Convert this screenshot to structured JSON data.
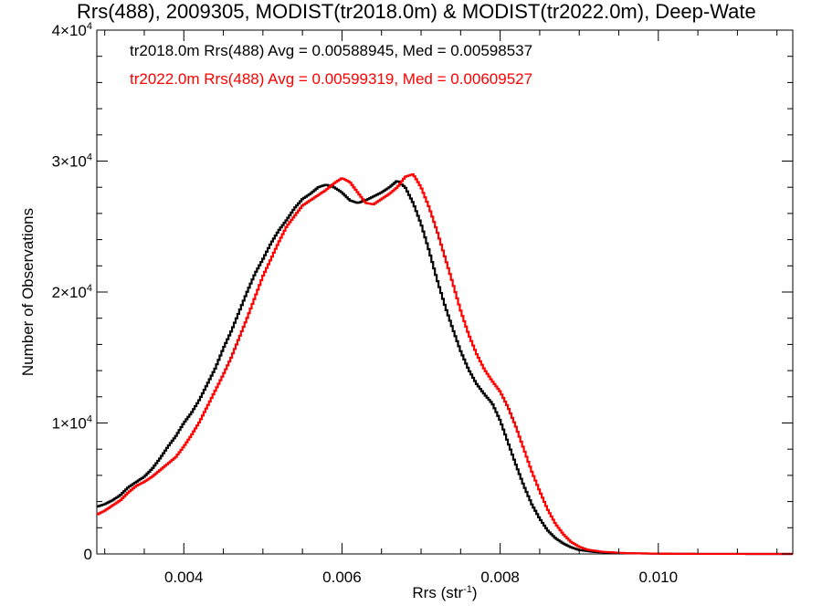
{
  "chart_data": {
    "type": "line",
    "title": "Rrs(488), 2009305, MODIST(tr2018.0m) & MODIST(tr2022.0m), Deep-Wate",
    "xlabel": "Rrs (str",
    "xlabel_sup": "-1",
    "xlabel_close": ")",
    "ylabel": "Number of Observations",
    "xlim": [
      0.0029,
      0.0117
    ],
    "ylim": [
      0,
      40000
    ],
    "x_ticks": [
      {
        "value": 0.004,
        "label": "0.004"
      },
      {
        "value": 0.006,
        "label": "0.006"
      },
      {
        "value": 0.008,
        "label": "0.008"
      },
      {
        "value": 0.01,
        "label": "0.010"
      }
    ],
    "y_ticks": [
      {
        "value": 0,
        "mant": "0",
        "exp": ""
      },
      {
        "value": 10000,
        "mant": "1×10",
        "exp": "4"
      },
      {
        "value": 20000,
        "mant": "2×10",
        "exp": "4"
      },
      {
        "value": 30000,
        "mant": "3×10",
        "exp": "4"
      },
      {
        "value": 40000,
        "mant": "4×10",
        "exp": "4"
      }
    ],
    "grid": false,
    "legend_position": "top-left",
    "series": [
      {
        "name": "tr2018.0m Rrs(488) Avg = 0.00588945, Med = 0.00598537",
        "color": "#000000",
        "points": [
          [
            0.0029,
            3600
          ],
          [
            0.003,
            3800
          ],
          [
            0.0031,
            4100
          ],
          [
            0.0032,
            4500
          ],
          [
            0.0033,
            5100
          ],
          [
            0.0034,
            5500
          ],
          [
            0.0035,
            5900
          ],
          [
            0.0036,
            6500
          ],
          [
            0.0037,
            7300
          ],
          [
            0.0038,
            8200
          ],
          [
            0.0039,
            9000
          ],
          [
            0.004,
            10000
          ],
          [
            0.0041,
            10800
          ],
          [
            0.0042,
            11800
          ],
          [
            0.0043,
            13000
          ],
          [
            0.0044,
            14200
          ],
          [
            0.0045,
            15700
          ],
          [
            0.0046,
            17000
          ],
          [
            0.0047,
            18500
          ],
          [
            0.0048,
            20000
          ],
          [
            0.0049,
            21400
          ],
          [
            0.005,
            22500
          ],
          [
            0.0051,
            23700
          ],
          [
            0.0052,
            24700
          ],
          [
            0.0053,
            25500
          ],
          [
            0.0054,
            26400
          ],
          [
            0.0055,
            27100
          ],
          [
            0.0056,
            27500
          ],
          [
            0.0057,
            28000
          ],
          [
            0.0058,
            28200
          ],
          [
            0.0059,
            28000
          ],
          [
            0.006,
            27600
          ],
          [
            0.0061,
            27000
          ],
          [
            0.0062,
            26800
          ],
          [
            0.0063,
            27000
          ],
          [
            0.0064,
            27300
          ],
          [
            0.0065,
            27600
          ],
          [
            0.0066,
            28000
          ],
          [
            0.0067,
            28500
          ],
          [
            0.0068,
            28000
          ],
          [
            0.0069,
            26800
          ],
          [
            0.007,
            25200
          ],
          [
            0.0071,
            23200
          ],
          [
            0.0072,
            21000
          ],
          [
            0.0073,
            19000
          ],
          [
            0.0074,
            17200
          ],
          [
            0.0075,
            15500
          ],
          [
            0.0076,
            14100
          ],
          [
            0.0077,
            13000
          ],
          [
            0.0078,
            12200
          ],
          [
            0.0079,
            11500
          ],
          [
            0.008,
            10200
          ],
          [
            0.0081,
            8500
          ],
          [
            0.0082,
            6800
          ],
          [
            0.0083,
            5200
          ],
          [
            0.0084,
            3800
          ],
          [
            0.0085,
            2700
          ],
          [
            0.0086,
            1800
          ],
          [
            0.0087,
            1200
          ],
          [
            0.0088,
            800
          ],
          [
            0.0089,
            500
          ],
          [
            0.009,
            300
          ],
          [
            0.0092,
            150
          ],
          [
            0.0095,
            60
          ],
          [
            0.01,
            20
          ],
          [
            0.0105,
            5
          ],
          [
            0.0117,
            0
          ]
        ]
      },
      {
        "name": "tr2022.0m Rrs(488) Avg = 0.00599319, Med = 0.00609527",
        "color": "#ff0000",
        "points": [
          [
            0.0029,
            3000
          ],
          [
            0.003,
            3300
          ],
          [
            0.0031,
            3700
          ],
          [
            0.0032,
            4100
          ],
          [
            0.0033,
            4700
          ],
          [
            0.0034,
            5200
          ],
          [
            0.0035,
            5500
          ],
          [
            0.0036,
            5900
          ],
          [
            0.0037,
            6400
          ],
          [
            0.0038,
            6900
          ],
          [
            0.0039,
            7400
          ],
          [
            0.004,
            8200
          ],
          [
            0.0041,
            9100
          ],
          [
            0.0042,
            10100
          ],
          [
            0.0043,
            11300
          ],
          [
            0.0044,
            12500
          ],
          [
            0.0045,
            13700
          ],
          [
            0.0046,
            15000
          ],
          [
            0.0047,
            16500
          ],
          [
            0.0048,
            18000
          ],
          [
            0.0049,
            19600
          ],
          [
            0.005,
            21200
          ],
          [
            0.0051,
            22500
          ],
          [
            0.0052,
            23800
          ],
          [
            0.0053,
            25000
          ],
          [
            0.0054,
            25800
          ],
          [
            0.0055,
            26600
          ],
          [
            0.0056,
            27000
          ],
          [
            0.0057,
            27400
          ],
          [
            0.0058,
            27800
          ],
          [
            0.0059,
            28300
          ],
          [
            0.006,
            28700
          ],
          [
            0.0061,
            28400
          ],
          [
            0.0062,
            27600
          ],
          [
            0.0063,
            26800
          ],
          [
            0.0064,
            26700
          ],
          [
            0.0065,
            27100
          ],
          [
            0.0066,
            27500
          ],
          [
            0.0067,
            28000
          ],
          [
            0.0068,
            28800
          ],
          [
            0.0069,
            29000
          ],
          [
            0.007,
            28000
          ],
          [
            0.0071,
            26500
          ],
          [
            0.0072,
            24700
          ],
          [
            0.0073,
            22700
          ],
          [
            0.0074,
            20700
          ],
          [
            0.0075,
            18600
          ],
          [
            0.0076,
            16800
          ],
          [
            0.0077,
            15300
          ],
          [
            0.0078,
            14100
          ],
          [
            0.0079,
            13200
          ],
          [
            0.008,
            12400
          ],
          [
            0.0081,
            11200
          ],
          [
            0.0082,
            9700
          ],
          [
            0.0083,
            8000
          ],
          [
            0.0084,
            6300
          ],
          [
            0.0085,
            4800
          ],
          [
            0.0086,
            3400
          ],
          [
            0.0087,
            2300
          ],
          [
            0.0088,
            1500
          ],
          [
            0.0089,
            900
          ],
          [
            0.009,
            550
          ],
          [
            0.0091,
            330
          ],
          [
            0.0093,
            160
          ],
          [
            0.0096,
            60
          ],
          [
            0.01,
            20
          ],
          [
            0.0105,
            5
          ],
          [
            0.0117,
            0
          ]
        ]
      }
    ]
  }
}
